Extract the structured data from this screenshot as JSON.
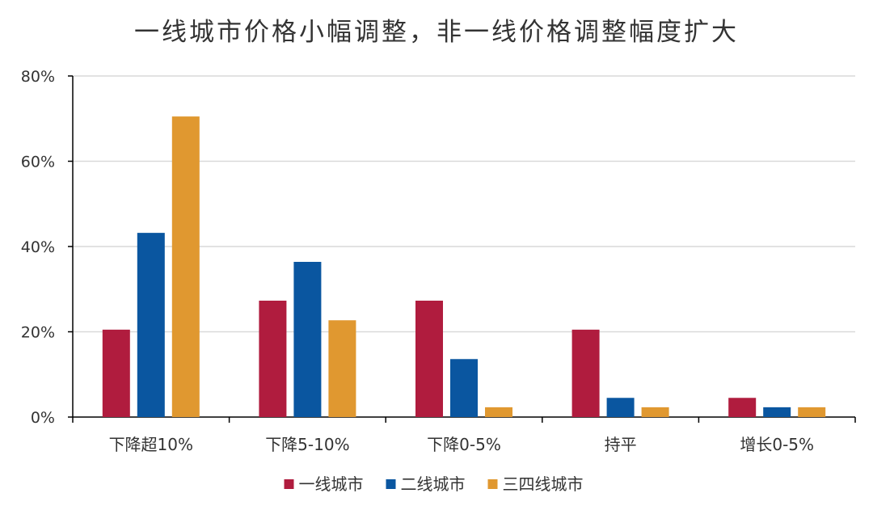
{
  "chart_data": {
    "type": "bar",
    "title": "一线城市价格小幅调整，非一线价格调整幅度扩大",
    "categories": [
      "下降超10%",
      "下降5-10%",
      "下降0-5%",
      "持平",
      "增长0-5%"
    ],
    "series": [
      {
        "name": "一线城市",
        "color": "#B01C3E",
        "values": [
          20.5,
          27.3,
          27.3,
          20.5,
          4.5
        ]
      },
      {
        "name": "二线城市",
        "color": "#0A56A0",
        "values": [
          43.2,
          36.4,
          13.6,
          4.5,
          2.3
        ]
      },
      {
        "name": "三四线城市",
        "color": "#E09830",
        "values": [
          70.5,
          22.7,
          2.3,
          2.3,
          2.3
        ]
      }
    ],
    "ylim": [
      0,
      80
    ],
    "yticks": [
      "0%",
      "20%",
      "40%",
      "60%",
      "80%"
    ],
    "ytick_values": [
      0,
      20,
      40,
      60,
      80
    ],
    "grid": true,
    "legend_position": "bottom"
  }
}
